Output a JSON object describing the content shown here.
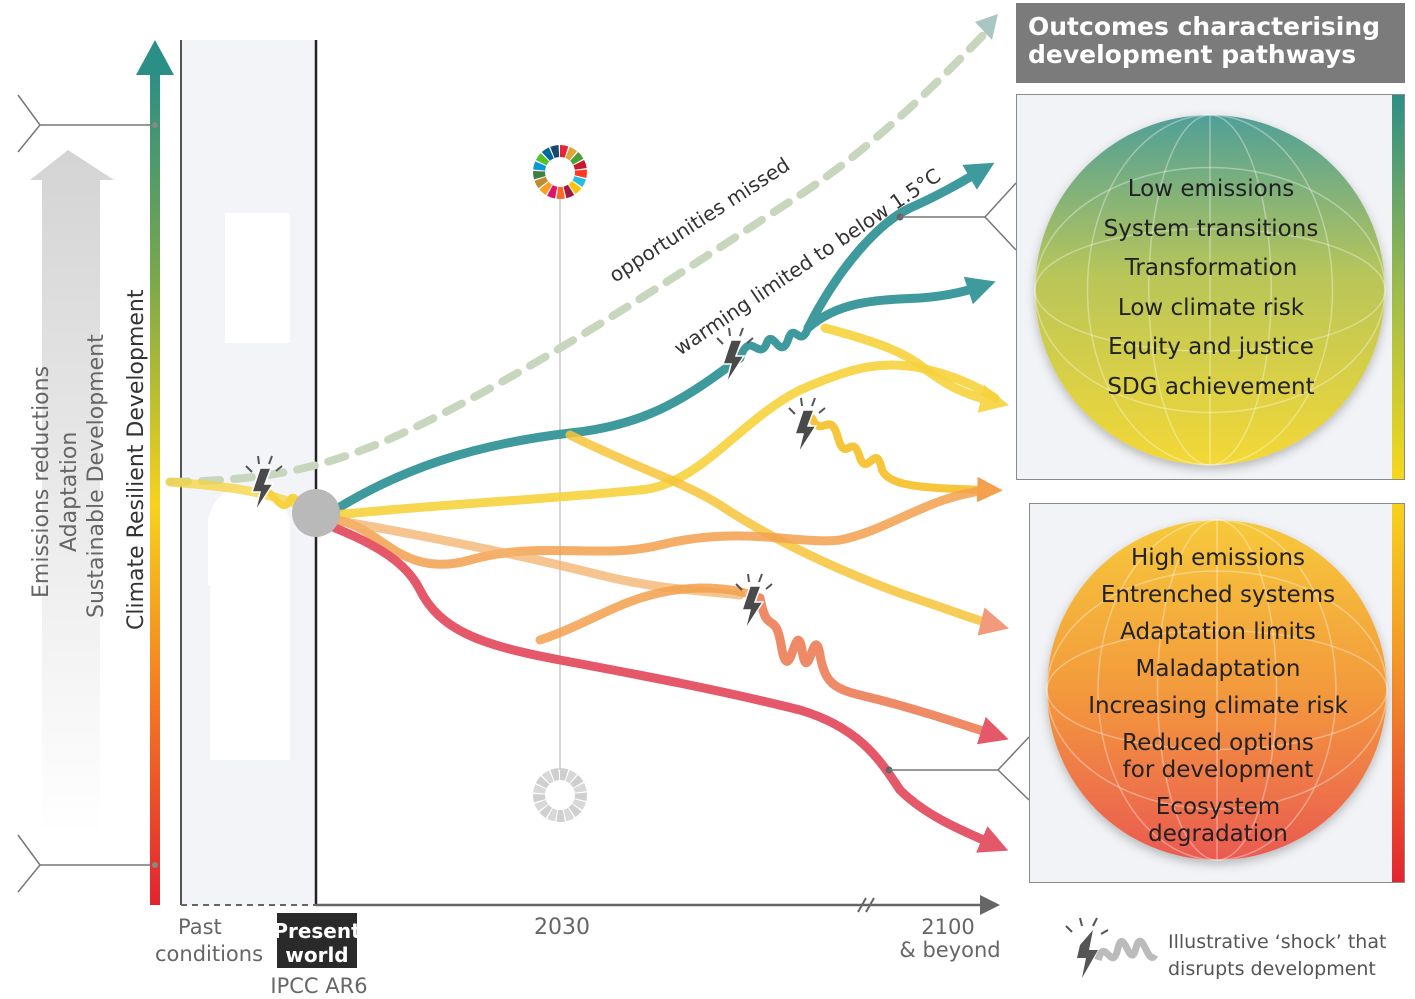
{
  "header": {
    "line1": "Outcomes characterising",
    "line2": "development pathways"
  },
  "axis_labels": {
    "emissions_reductions": "Emissions reductions",
    "adaptation": "Adaptation",
    "sustainable_development": "Sustainable Development",
    "climate_resilient_development": "Climate Resilient Development"
  },
  "time_axis": {
    "past_line1": "Past",
    "past_line2": "conditions",
    "present_line1": "Present",
    "present_line2": "world",
    "ipcc": "IPCC AR6",
    "mid": "2030",
    "end_line1": "2100",
    "end_line2": "& beyond"
  },
  "path_labels": {
    "opportunities": "opportunities missed",
    "warming": "warming limited to below 1.5°C"
  },
  "outcomes_positive": [
    "Low emissions",
    "System transitions",
    "Transformation",
    "Low climate risk",
    "Equity and justice",
    "SDG achievement"
  ],
  "outcomes_negative": [
    "High emissions",
    "Entrenched systems",
    "Adaptation limits",
    "Maladaptation",
    "Increasing climate risk",
    "Reduced options",
    "for development",
    "Ecosystem",
    "degradation"
  ],
  "legend": {
    "line1": "Illustrative ‘shock’ that",
    "line2": "disrupts development"
  },
  "colors": {
    "teal": "#3e9a9c",
    "yellow": "#f6d33c",
    "orange": "#f3a04e",
    "salmon": "#ef8a66",
    "red": "#e5586a",
    "dotted": "#c7d6bd"
  },
  "icons": [
    "sdg-wheel-icon",
    "sdg-wheel-gray-icon",
    "lightning-shock-icon",
    "axis-arrow-icon"
  ]
}
